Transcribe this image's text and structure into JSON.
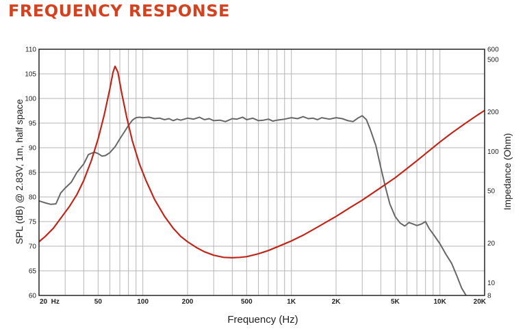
{
  "title": "FREQUENCY RESPONSE",
  "colors": {
    "title": "#d4411f",
    "spl": "#666666",
    "impedance": "#c0261a",
    "grid": "#b5b5b5",
    "frame": "#222222"
  },
  "chart_data": {
    "type": "line",
    "title": "FREQUENCY RESPONSE",
    "xlabel": "Frequency (Hz)",
    "ylabel_left": "SPL (dB) @ 2.83V, 1m, half space",
    "ylabel_right": "Impedance (Ohm)",
    "x_scale": "log",
    "xlim": [
      20,
      20000
    ],
    "ylim_left": [
      60,
      110
    ],
    "ylim_right": [
      8,
      600
    ],
    "y_right_scale": "log",
    "grid": true,
    "x_ticks": [
      {
        "value": 20,
        "label": "20  Hz"
      },
      {
        "value": 50,
        "label": "50"
      },
      {
        "value": 100,
        "label": "100"
      },
      {
        "value": 200,
        "label": "200"
      },
      {
        "value": 500,
        "label": "500"
      },
      {
        "value": 1000,
        "label": "1K"
      },
      {
        "value": 2000,
        "label": "2K"
      },
      {
        "value": 5000,
        "label": "5K"
      },
      {
        "value": 10000,
        "label": "10K"
      },
      {
        "value": 20000,
        "label": "20K"
      }
    ],
    "y_left_ticks": [
      60,
      65,
      70,
      75,
      80,
      85,
      90,
      95,
      100,
      105,
      110
    ],
    "y_right_ticks": [
      {
        "value": 8,
        "label": "8"
      },
      {
        "value": 10,
        "label": "10"
      },
      {
        "value": 20,
        "label": "20"
      },
      {
        "value": 50,
        "label": "50"
      },
      {
        "value": 100,
        "label": "100"
      },
      {
        "value": 200,
        "label": "200"
      },
      {
        "value": 500,
        "label": "500"
      },
      {
        "value": 600,
        "label": "600"
      }
    ],
    "series": [
      {
        "axis": "left",
        "unit": "dB",
        "points": [
          [
            20,
            79.2
          ],
          [
            22,
            78.8
          ],
          [
            24,
            78.5
          ],
          [
            26,
            78.6
          ],
          [
            28,
            80.8
          ],
          [
            30,
            81.8
          ],
          [
            33,
            83
          ],
          [
            36,
            85
          ],
          [
            40,
            86.7
          ],
          [
            43,
            88.6
          ],
          [
            47,
            89.1
          ],
          [
            50,
            88.8
          ],
          [
            53,
            88.3
          ],
          [
            56,
            88.4
          ],
          [
            60,
            89
          ],
          [
            65,
            90.2
          ],
          [
            70,
            91.8
          ],
          [
            75,
            93.2
          ],
          [
            80,
            94.5
          ],
          [
            85,
            95.6
          ],
          [
            90,
            96.1
          ],
          [
            95,
            96.2
          ],
          [
            100,
            96.1
          ],
          [
            110,
            96.2
          ],
          [
            120,
            95.9
          ],
          [
            130,
            96.0
          ],
          [
            140,
            95.7
          ],
          [
            150,
            95.9
          ],
          [
            160,
            95.5
          ],
          [
            170,
            95.8
          ],
          [
            180,
            95.6
          ],
          [
            200,
            96.0
          ],
          [
            220,
            95.8
          ],
          [
            240,
            96.2
          ],
          [
            260,
            95.7
          ],
          [
            280,
            95.9
          ],
          [
            300,
            95.5
          ],
          [
            330,
            95.6
          ],
          [
            360,
            95.3
          ],
          [
            400,
            95.9
          ],
          [
            430,
            95.8
          ],
          [
            470,
            96.2
          ],
          [
            500,
            95.7
          ],
          [
            550,
            96.0
          ],
          [
            600,
            95.5
          ],
          [
            650,
            95.6
          ],
          [
            700,
            95.8
          ],
          [
            750,
            95.4
          ],
          [
            800,
            95.6
          ],
          [
            900,
            95.8
          ],
          [
            1000,
            96.1
          ],
          [
            1100,
            95.9
          ],
          [
            1200,
            96.3
          ],
          [
            1300,
            95.9
          ],
          [
            1400,
            96.0
          ],
          [
            1500,
            95.7
          ],
          [
            1600,
            96.1
          ],
          [
            1800,
            95.8
          ],
          [
            2000,
            96.1
          ],
          [
            2200,
            95.9
          ],
          [
            2400,
            95.5
          ],
          [
            2600,
            95.3
          ],
          [
            2800,
            96.0
          ],
          [
            3000,
            96.5
          ],
          [
            3200,
            95.7
          ],
          [
            3400,
            93.7
          ],
          [
            3700,
            90.5
          ],
          [
            4000,
            86
          ],
          [
            4300,
            82
          ],
          [
            4600,
            78.6
          ],
          [
            5000,
            76.0
          ],
          [
            5400,
            74.7
          ],
          [
            5800,
            74.1
          ],
          [
            6200,
            74.8
          ],
          [
            6600,
            74.5
          ],
          [
            7000,
            74.2
          ],
          [
            7500,
            74.5
          ],
          [
            8000,
            75.0
          ],
          [
            8500,
            73.5
          ],
          [
            9000,
            72.5
          ],
          [
            10000,
            70.5
          ],
          [
            11000,
            68.3
          ],
          [
            12000,
            66.5
          ],
          [
            13000,
            64.0
          ],
          [
            14000,
            61.5
          ],
          [
            15000,
            60.0
          ]
        ]
      },
      {
        "axis": "right",
        "unit": "Ohm",
        "points": [
          [
            20,
            20.5
          ],
          [
            22,
            22.5
          ],
          [
            25,
            26
          ],
          [
            28,
            31
          ],
          [
            32,
            38
          ],
          [
            36,
            47
          ],
          [
            40,
            60
          ],
          [
            45,
            85
          ],
          [
            50,
            125
          ],
          [
            55,
            190
          ],
          [
            60,
            300
          ],
          [
            63,
            400
          ],
          [
            65,
            445
          ],
          [
            68,
            400
          ],
          [
            72,
            280
          ],
          [
            78,
            180
          ],
          [
            85,
            120
          ],
          [
            95,
            80
          ],
          [
            105,
            60
          ],
          [
            120,
            43
          ],
          [
            140,
            32
          ],
          [
            160,
            26
          ],
          [
            180,
            22.5
          ],
          [
            200,
            20.5
          ],
          [
            230,
            18.5
          ],
          [
            260,
            17.2
          ],
          [
            300,
            16.2
          ],
          [
            350,
            15.6
          ],
          [
            400,
            15.5
          ],
          [
            450,
            15.6
          ],
          [
            500,
            15.8
          ],
          [
            600,
            16.6
          ],
          [
            700,
            17.6
          ],
          [
            800,
            18.7
          ],
          [
            1000,
            20.8
          ],
          [
            1200,
            23
          ],
          [
            1500,
            26.5
          ],
          [
            2000,
            32
          ],
          [
            2500,
            37.5
          ],
          [
            3000,
            42.5
          ],
          [
            4000,
            53
          ],
          [
            5000,
            63
          ],
          [
            6000,
            74
          ],
          [
            7000,
            85
          ],
          [
            8000,
            96
          ],
          [
            10000,
            118
          ],
          [
            12000,
            138
          ],
          [
            15000,
            165
          ],
          [
            18000,
            190
          ],
          [
            20000,
            205
          ]
        ]
      }
    ]
  }
}
